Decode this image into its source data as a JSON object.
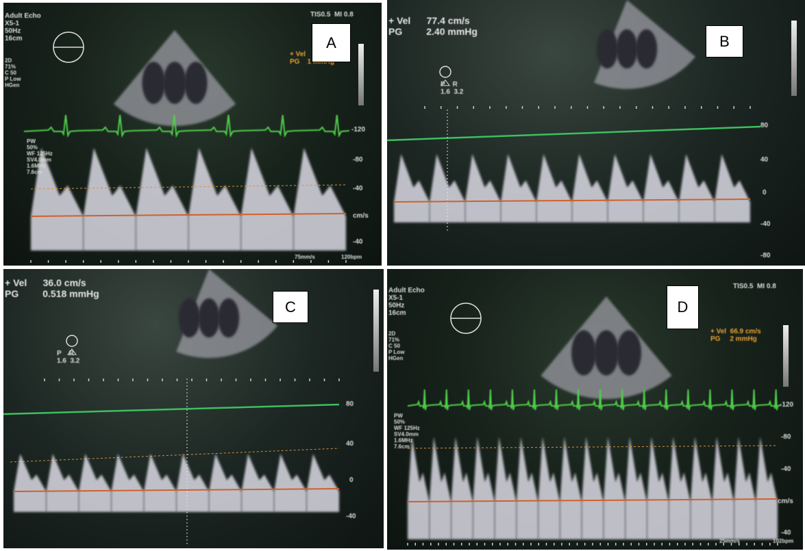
{
  "panels": [
    {
      "id": "A",
      "label": "A",
      "header": "Adult Echo\nX5-1\n50Hz\n16cm",
      "mode_2d": "2D\n71%\nC 50\nP Low\nHGen",
      "indices": "TIS0.5  MI 0.8",
      "measure": "+ Vel\nPG    1 mmHg",
      "pw_settings": "PW\n50%\nWF 125Hz\nSV4.0mm\n1.6MHz\n7.6cm",
      "scale_ticks": [
        "-120",
        "-80",
        "-40",
        "cm/s",
        "-40"
      ],
      "sweep": "75mm/s",
      "hr": "120bpm",
      "ecg_beats": 6,
      "doppler_beats": 6
    },
    {
      "id": "B",
      "label": "B",
      "measure": "+ Vel      77.4 cm/s\nPG         2.40 mmHg",
      "probe": "P    R\n1.6  3.2",
      "scale_ticks": [
        "80",
        "40",
        "0",
        "-40",
        "-80"
      ],
      "doppler_beats": 10
    },
    {
      "id": "C",
      "label": "C",
      "measure": "+ Vel      36.0 cm/s\nPG         0.518 mmHg",
      "probe": "P    R\n1.6  3.2",
      "scale_ticks": [
        "80",
        "40",
        "0",
        "-40"
      ],
      "doppler_beats": 10
    },
    {
      "id": "D",
      "label": "D",
      "header": "Adult Echo\nX5-1\n50Hz\n16cm",
      "mode_2d": "2D\n71%\nC 50\nP Low\nHGen",
      "indices": "TIS0.5  MI 0.8",
      "measure": "+ Vel  66.9 cm/s\nPG     2 mmHg",
      "pw_settings": "PW\n50%\nWF 125Hz\nSV4.0mm\n1.6MHz\n7.6cm",
      "scale_ticks": [
        "-120",
        "-80",
        "-40",
        "cm/s",
        "-40"
      ],
      "sweep": "25mm/s",
      "hr": "102bpm",
      "ecg_beats": 17,
      "doppler_beats": 17
    }
  ],
  "colors": {
    "ecg": "#4fd04a",
    "baseline": "#d0602a",
    "doppler": "#e8e6f2",
    "text_orange": "#e8a030"
  }
}
